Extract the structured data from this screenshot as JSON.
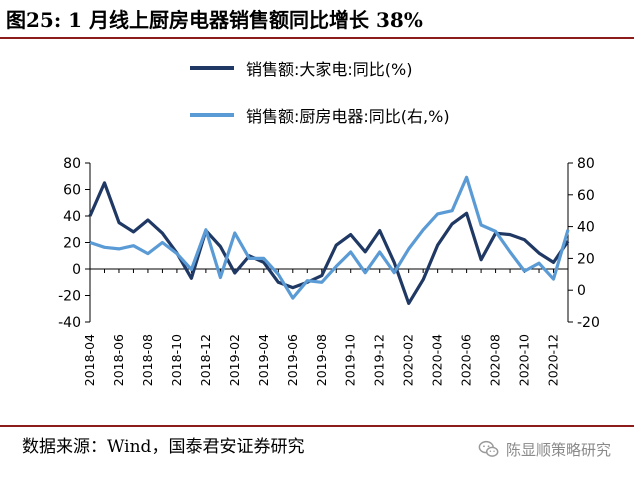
{
  "header": {
    "title": "图25: 1 月线上厨房电器销售额同比增长 38%"
  },
  "footer": {
    "source": "数据来源：Wind，国泰君安证券研究"
  },
  "watermark": {
    "text": "陈显顺策略研究",
    "icon": "wechat-icon"
  },
  "colors": {
    "series_0": "#1f3864",
    "series_1": "#5b9bd5",
    "rule": "#8c1b1b"
  },
  "chart_data": {
    "type": "line",
    "x": [
      "2018-04",
      "2018-05",
      "2018-06",
      "2018-07",
      "2018-08",
      "2018-09",
      "2018-10",
      "2018-11",
      "2018-12",
      "2019-01",
      "2019-02",
      "2019-03",
      "2019-04",
      "2019-05",
      "2019-06",
      "2019-07",
      "2019-08",
      "2019-09",
      "2019-10",
      "2019-11",
      "2019-12",
      "2020-01",
      "2020-02",
      "2020-03",
      "2020-04",
      "2020-05",
      "2020-06",
      "2020-07",
      "2020-08",
      "2020-09",
      "2020-10",
      "2020-11",
      "2020-12",
      "2021-01"
    ],
    "x_tick_labels": [
      "2018-04",
      "2018-06",
      "2018-08",
      "2018-10",
      "2018-12",
      "2019-02",
      "2019-04",
      "2019-06",
      "2019-08",
      "2019-10",
      "2019-12",
      "2020-02",
      "2020-04",
      "2020-06",
      "2020-08",
      "2020-10",
      "2020-12"
    ],
    "y_left": {
      "ylim": [
        -40,
        80
      ],
      "ticks": [
        "-40",
        "-20",
        "0",
        "20",
        "40",
        "60",
        "80"
      ]
    },
    "y_right": {
      "ylim": [
        -20,
        80
      ],
      "ticks": [
        "-20",
        "0",
        "20",
        "40",
        "60",
        "80"
      ]
    },
    "grid": false,
    "legend_position": "top-center",
    "series": [
      {
        "name": "销售额:大家电:同比(%)",
        "axis": "left",
        "values": [
          40,
          65,
          35,
          28,
          37,
          27,
          12,
          -7,
          29,
          17,
          -3,
          10,
          5,
          -10,
          -14,
          -10,
          -5,
          18,
          26,
          13,
          29,
          5,
          -26,
          -8,
          18,
          34,
          42,
          7,
          27,
          26,
          22,
          12,
          5,
          21
        ]
      },
      {
        "name": "销售额:厨房电器:同比(右,%)",
        "axis": "right",
        "values": [
          30,
          27,
          26,
          28,
          23,
          30,
          23,
          13,
          38,
          8,
          36,
          20,
          20,
          10,
          -5,
          6,
          5,
          15,
          24,
          11,
          24,
          11,
          26,
          38,
          48,
          50,
          71,
          41,
          37,
          24,
          12,
          17,
          7,
          38
        ]
      }
    ]
  }
}
